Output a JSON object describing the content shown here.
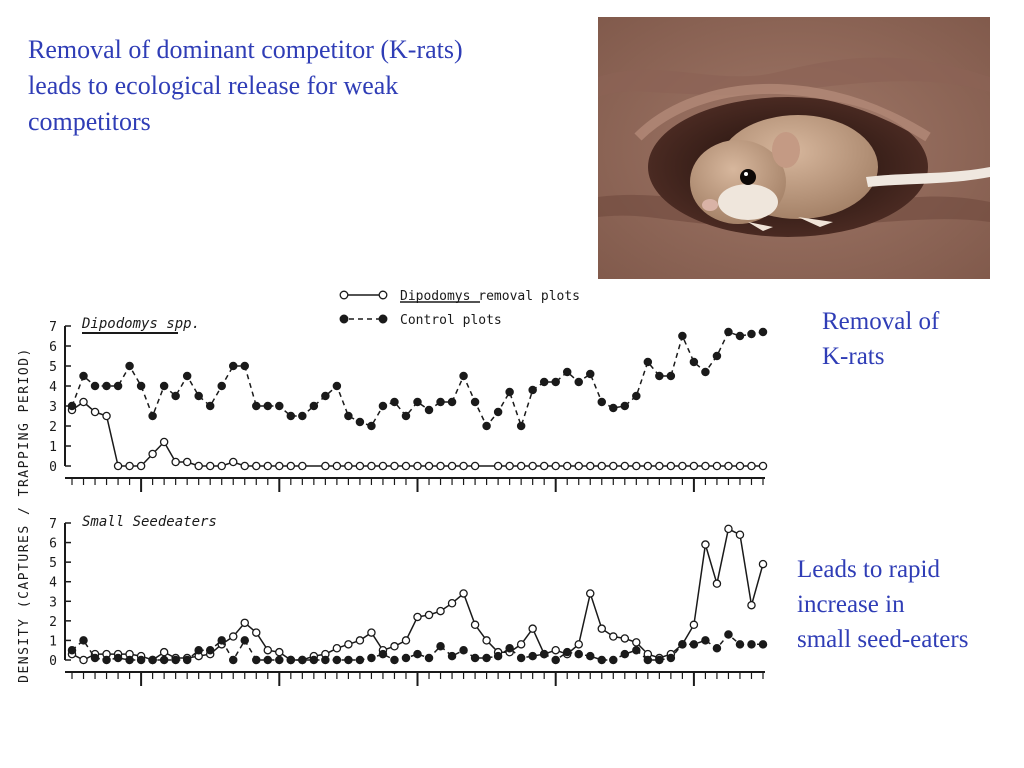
{
  "slide": {
    "title": "Removal of dominant competitor (K-rats)\nleads to ecological release for weak\ncompetitors",
    "note_removal": "Removal of\nK-rats",
    "note_increase": "Leads to rapid\nincrease in\nsmall seed-eaters"
  },
  "colors": {
    "text_accent": "#2f3db6",
    "plot_ink": "#1a1a1a"
  },
  "photo": {
    "subject": "kangaroo rat emerging from burrow"
  },
  "chart_data": [
    {
      "type": "line",
      "title": "Dipodomys spp.",
      "ylabel": "DENSITY (CAPTURES / TRAPPING PERIOD)",
      "ylim": [
        0,
        7
      ],
      "yticks": [
        "0",
        "1",
        "2",
        "3",
        "4",
        "5",
        "6",
        "7"
      ],
      "xlim": [
        0,
        60
      ],
      "grid": false,
      "legend": {
        "placement": "top-center",
        "entries": [
          "Dipodomys removal plots",
          "Control plots"
        ]
      },
      "series": [
        {
          "name": "Dipodomys removal plots",
          "marker": "open-circle",
          "style": "solid",
          "x": [
            0,
            1,
            2,
            3,
            4,
            5,
            6,
            7,
            8,
            9,
            10,
            11,
            12,
            13,
            14,
            15,
            16,
            17,
            18,
            19,
            20,
            22,
            23,
            24,
            25,
            26,
            27,
            28,
            29,
            30,
            31,
            32,
            33,
            34,
            35,
            37,
            38,
            39,
            40,
            41,
            42,
            43,
            44,
            45,
            46,
            47,
            48,
            49,
            50,
            51,
            52,
            53,
            54,
            55,
            56,
            57,
            58,
            59,
            60
          ],
          "values": [
            2.8,
            3.2,
            2.7,
            2.5,
            0,
            0,
            0,
            0.6,
            1.2,
            0.2,
            0.2,
            0,
            0,
            0,
            0.2,
            0,
            0,
            0,
            0,
            0,
            0,
            0,
            0,
            0,
            0,
            0,
            0,
            0,
            0,
            0,
            0,
            0,
            0,
            0,
            0,
            0,
            0,
            0,
            0,
            0,
            0,
            0,
            0,
            0,
            0,
            0,
            0,
            0,
            0,
            0,
            0,
            0,
            0,
            0,
            0,
            0,
            0,
            0,
            0
          ]
        },
        {
          "name": "Control plots",
          "marker": "filled-circle",
          "style": "dashed",
          "x": [
            0,
            1,
            2,
            3,
            4,
            5,
            6,
            7,
            8,
            9,
            10,
            11,
            12,
            13,
            14,
            15,
            16,
            17,
            18,
            19,
            20,
            21,
            22,
            23,
            24,
            25,
            26,
            27,
            28,
            29,
            30,
            31,
            32,
            33,
            34,
            35,
            36,
            37,
            38,
            39,
            40,
            41,
            42,
            43,
            44,
            45,
            46,
            47,
            48,
            49,
            50,
            51,
            52,
            53,
            54,
            55,
            56,
            57,
            58,
            59,
            60
          ],
          "values": [
            3,
            4.5,
            4,
            4,
            4,
            5,
            4,
            2.5,
            4,
            3.5,
            4.5,
            3.5,
            3,
            4,
            5,
            5,
            3,
            3,
            3,
            2.5,
            2.5,
            3,
            3.5,
            4,
            2.5,
            2.2,
            2,
            3,
            3.2,
            2.5,
            3.2,
            2.8,
            3.2,
            3.2,
            4.5,
            3.2,
            2,
            2.7,
            3.7,
            2,
            3.8,
            4.2,
            4.2,
            4.7,
            4.2,
            4.6,
            3.2,
            2.9,
            3,
            3.5,
            5.2,
            4.5,
            4.5,
            6.5,
            5.2,
            4.7,
            5.5,
            6.7,
            6.5,
            6.6,
            6.7
          ]
        }
      ]
    },
    {
      "type": "line",
      "title": "Small Seedeaters",
      "ylim": [
        0,
        7
      ],
      "yticks": [
        "0",
        "1",
        "2",
        "3",
        "4",
        "5",
        "6",
        "7"
      ],
      "xlim": [
        0,
        60
      ],
      "grid": false,
      "series": [
        {
          "name": "Dipodomys removal plots",
          "marker": "open-circle",
          "style": "solid",
          "x": [
            0,
            1,
            2,
            3,
            4,
            5,
            6,
            7,
            8,
            9,
            10,
            11,
            12,
            13,
            14,
            15,
            16,
            17,
            18,
            19,
            20,
            21,
            22,
            23,
            24,
            25,
            26,
            27,
            28,
            29,
            30,
            31,
            32,
            33,
            34,
            35,
            36,
            37,
            38,
            39,
            40,
            41,
            42,
            43,
            44,
            45,
            46,
            47,
            48,
            49,
            50,
            51,
            52,
            53,
            54,
            55,
            56,
            57,
            58,
            59,
            60
          ],
          "values": [
            0.3,
            0,
            0.3,
            0.3,
            0.3,
            0.3,
            0.2,
            0,
            0.4,
            0.1,
            0.1,
            0.2,
            0.3,
            0.8,
            1.2,
            1.9,
            1.4,
            0.5,
            0.4,
            0,
            0,
            0.2,
            0.3,
            0.6,
            0.8,
            1,
            1.4,
            0.5,
            0.7,
            1,
            2.2,
            2.3,
            2.5,
            2.9,
            3.4,
            1.8,
            1.0,
            0.4,
            0.4,
            0.8,
            1.6,
            0.3,
            0.5,
            0.3,
            0.8,
            3.4,
            1.6,
            1.2,
            1.1,
            0.9,
            0.3,
            0.1,
            0.3,
            0.8,
            1.8,
            5.9,
            3.9,
            6.7,
            6.4,
            2.8,
            4.9
          ]
        },
        {
          "name": "Control plots",
          "marker": "filled-circle",
          "style": "dashed",
          "x": [
            0,
            1,
            2,
            3,
            4,
            5,
            6,
            7,
            8,
            9,
            10,
            11,
            12,
            13,
            14,
            15,
            16,
            17,
            18,
            19,
            20,
            21,
            22,
            23,
            24,
            25,
            26,
            27,
            28,
            29,
            30,
            31,
            32,
            33,
            34,
            35,
            36,
            37,
            38,
            39,
            40,
            41,
            42,
            43,
            44,
            45,
            46,
            47,
            48,
            49,
            50,
            51,
            52,
            53,
            54,
            55,
            56,
            57,
            58,
            59,
            60
          ],
          "values": [
            0.5,
            1,
            0.1,
            0,
            0.1,
            0,
            0,
            0,
            0,
            0,
            0,
            0.5,
            0.5,
            1,
            0,
            1,
            0,
            0,
            0,
            0,
            0,
            0,
            0,
            0,
            0,
            0,
            0.1,
            0.3,
            0,
            0.1,
            0.3,
            0.1,
            0.7,
            0.2,
            0.5,
            0.1,
            0.1,
            0.2,
            0.6,
            0.1,
            0.2,
            0.3,
            0,
            0.4,
            0.3,
            0.2,
            0,
            0,
            0.3,
            0.5,
            0,
            0,
            0.1,
            0.8,
            0.8,
            1,
            0.6,
            1.3,
            0.8,
            0.8,
            0.8
          ]
        }
      ]
    }
  ]
}
